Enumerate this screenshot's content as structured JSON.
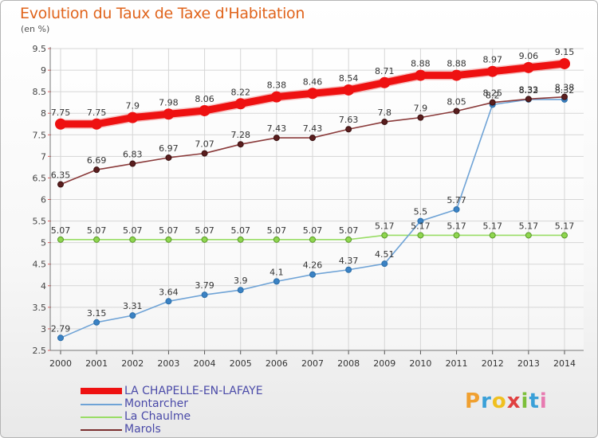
{
  "header": {
    "title": "Evolution du Taux de Taxe d'Habitation",
    "unit": "(en %)"
  },
  "brand": {
    "p": "P",
    "r": "r",
    "o": "o",
    "x": "x",
    "i": "i",
    "t": "t",
    "i2": "i"
  },
  "chart_data": {
    "type": "line",
    "title": "Evolution du Taux de Taxe d'Habitation",
    "ylabel": "(en %)",
    "xlabel": "",
    "ylim": [
      2.5,
      9.5
    ],
    "yticks": [
      "2.5",
      "3",
      "3.5",
      "4",
      "4.5",
      "5",
      "5.5",
      "6",
      "6.5",
      "7",
      "7.5",
      "8",
      "8.5",
      "9",
      "9.5"
    ],
    "grid": true,
    "legend_position": "bottom-left",
    "x": [
      "2000",
      "2001",
      "2002",
      "2003",
      "2004",
      "2005",
      "2006",
      "2007",
      "2008",
      "2009",
      "2010",
      "2011",
      "2012",
      "2013",
      "2014"
    ],
    "series": [
      {
        "name": "LA CHAPELLE-EN-LAFAYE",
        "color": "#ee1111",
        "values": [
          7.75,
          7.75,
          7.9,
          7.98,
          8.06,
          8.22,
          8.38,
          8.46,
          8.54,
          8.71,
          8.88,
          8.88,
          8.97,
          9.06,
          9.15
        ],
        "labels": [
          "7.75",
          "7.75",
          "7.9",
          "7.98",
          "8.06",
          "8.22",
          "8.38",
          "8.46",
          "8.54",
          "8.71",
          "8.88",
          "8.88",
          "8.97",
          "9.06",
          "9.15"
        ]
      },
      {
        "name": "Montarcher",
        "color": "#6fa3d6",
        "values": [
          2.79,
          3.15,
          3.31,
          3.64,
          3.79,
          3.9,
          4.1,
          4.26,
          4.37,
          4.51,
          5.5,
          5.77,
          8.2,
          8.32,
          8.32
        ],
        "labels": [
          "2.79",
          "3.15",
          "3.31",
          "3.64",
          "3.79",
          "3.9",
          "4.1",
          "4.26",
          "4.37",
          "4.51",
          "5.5",
          "5.77",
          "8.2",
          "8.32",
          "8.32"
        ]
      },
      {
        "name": "La Chaulme",
        "color": "#99dd66",
        "values": [
          5.07,
          5.07,
          5.07,
          5.07,
          5.07,
          5.07,
          5.07,
          5.07,
          5.07,
          5.17,
          5.17,
          5.17,
          5.17,
          5.17,
          5.17
        ],
        "labels": [
          "5.07",
          "5.07",
          "5.07",
          "5.07",
          "5.07",
          "5.07",
          "5.07",
          "5.07",
          "5.07",
          "5.17",
          "5.17",
          "5.17",
          "5.17",
          "5.17",
          "5.17"
        ]
      },
      {
        "name": "Marols",
        "color": "#7a2f2f",
        "values": [
          6.35,
          6.69,
          6.83,
          6.97,
          7.07,
          7.28,
          7.43,
          7.43,
          7.63,
          7.8,
          7.9,
          8.05,
          8.25,
          8.33,
          8.38
        ],
        "labels": [
          "6.35",
          "6.69",
          "6.83",
          "6.97",
          "7.07",
          "7.28",
          "7.43",
          "7.43",
          "7.63",
          "7.8",
          "7.9",
          "8.05",
          "8.25",
          "8.33",
          "8.38"
        ]
      }
    ]
  }
}
